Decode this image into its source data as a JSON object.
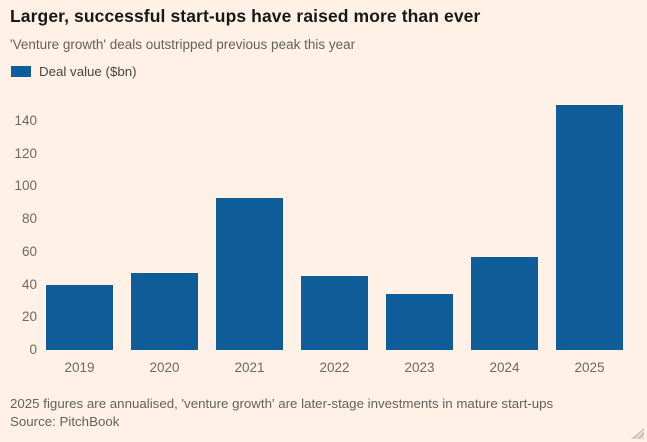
{
  "header": {
    "title": "Larger, successful start-ups have raised more than ever",
    "subtitle": "'Venture growth' deals outstripped previous peak this year"
  },
  "legend": {
    "label": "Deal value ($bn)",
    "swatch_color": "#0E5C98"
  },
  "footer": {
    "footnote": "2025 figures are annualised, 'venture growth' are later-stage investments in mature start-ups",
    "source": "Source: PitchBook"
  },
  "colors": {
    "background": "#FFF1E5",
    "bar": "#0E5C98",
    "title_text": "#1A1817",
    "muted_text": "#66605C",
    "axis_text": "#6F6862"
  },
  "chart_data": {
    "type": "bar",
    "categories": [
      "2019",
      "2020",
      "2021",
      "2022",
      "2023",
      "2024",
      "2025"
    ],
    "values": [
      40,
      47,
      93,
      45,
      34,
      57,
      150
    ],
    "title": "Larger, successful start-ups have raised more than ever",
    "subtitle": "'Venture growth' deals outstripped previous peak this year",
    "xlabel": "",
    "ylabel": "Deal value ($bn)",
    "ylim": [
      0,
      155
    ],
    "yticks": [
      0,
      20,
      40,
      60,
      80,
      100,
      120,
      140
    ],
    "grid": false,
    "legend_position": "top-left",
    "legend_entries": [
      "Deal value ($bn)"
    ]
  }
}
